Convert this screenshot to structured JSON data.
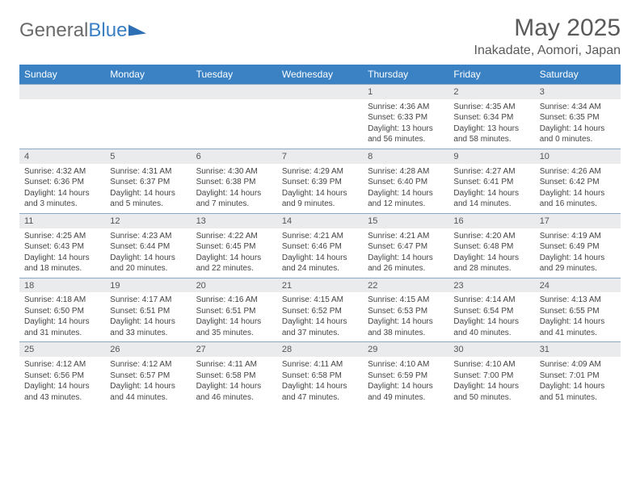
{
  "brand": {
    "part1": "General",
    "part2": "Blue"
  },
  "title": "May 2025",
  "location": "Inakadate, Aomori, Japan",
  "colors": {
    "header_bg": "#3b82c4",
    "header_text": "#ffffff",
    "daynum_bg": "#e9ebed",
    "row_border": "#8aa8c6",
    "body_text": "#444444",
    "title_text": "#5a5a5a"
  },
  "day_headers": [
    "Sunday",
    "Monday",
    "Tuesday",
    "Wednesday",
    "Thursday",
    "Friday",
    "Saturday"
  ],
  "weeks": [
    {
      "nums": [
        "",
        "",
        "",
        "",
        "1",
        "2",
        "3"
      ],
      "cells": [
        null,
        null,
        null,
        null,
        {
          "sr": "Sunrise: 4:36 AM",
          "ss": "Sunset: 6:33 PM",
          "d1": "Daylight: 13 hours",
          "d2": "and 56 minutes."
        },
        {
          "sr": "Sunrise: 4:35 AM",
          "ss": "Sunset: 6:34 PM",
          "d1": "Daylight: 13 hours",
          "d2": "and 58 minutes."
        },
        {
          "sr": "Sunrise: 4:34 AM",
          "ss": "Sunset: 6:35 PM",
          "d1": "Daylight: 14 hours",
          "d2": "and 0 minutes."
        }
      ]
    },
    {
      "nums": [
        "4",
        "5",
        "6",
        "7",
        "8",
        "9",
        "10"
      ],
      "cells": [
        {
          "sr": "Sunrise: 4:32 AM",
          "ss": "Sunset: 6:36 PM",
          "d1": "Daylight: 14 hours",
          "d2": "and 3 minutes."
        },
        {
          "sr": "Sunrise: 4:31 AM",
          "ss": "Sunset: 6:37 PM",
          "d1": "Daylight: 14 hours",
          "d2": "and 5 minutes."
        },
        {
          "sr": "Sunrise: 4:30 AM",
          "ss": "Sunset: 6:38 PM",
          "d1": "Daylight: 14 hours",
          "d2": "and 7 minutes."
        },
        {
          "sr": "Sunrise: 4:29 AM",
          "ss": "Sunset: 6:39 PM",
          "d1": "Daylight: 14 hours",
          "d2": "and 9 minutes."
        },
        {
          "sr": "Sunrise: 4:28 AM",
          "ss": "Sunset: 6:40 PM",
          "d1": "Daylight: 14 hours",
          "d2": "and 12 minutes."
        },
        {
          "sr": "Sunrise: 4:27 AM",
          "ss": "Sunset: 6:41 PM",
          "d1": "Daylight: 14 hours",
          "d2": "and 14 minutes."
        },
        {
          "sr": "Sunrise: 4:26 AM",
          "ss": "Sunset: 6:42 PM",
          "d1": "Daylight: 14 hours",
          "d2": "and 16 minutes."
        }
      ]
    },
    {
      "nums": [
        "11",
        "12",
        "13",
        "14",
        "15",
        "16",
        "17"
      ],
      "cells": [
        {
          "sr": "Sunrise: 4:25 AM",
          "ss": "Sunset: 6:43 PM",
          "d1": "Daylight: 14 hours",
          "d2": "and 18 minutes."
        },
        {
          "sr": "Sunrise: 4:23 AM",
          "ss": "Sunset: 6:44 PM",
          "d1": "Daylight: 14 hours",
          "d2": "and 20 minutes."
        },
        {
          "sr": "Sunrise: 4:22 AM",
          "ss": "Sunset: 6:45 PM",
          "d1": "Daylight: 14 hours",
          "d2": "and 22 minutes."
        },
        {
          "sr": "Sunrise: 4:21 AM",
          "ss": "Sunset: 6:46 PM",
          "d1": "Daylight: 14 hours",
          "d2": "and 24 minutes."
        },
        {
          "sr": "Sunrise: 4:21 AM",
          "ss": "Sunset: 6:47 PM",
          "d1": "Daylight: 14 hours",
          "d2": "and 26 minutes."
        },
        {
          "sr": "Sunrise: 4:20 AM",
          "ss": "Sunset: 6:48 PM",
          "d1": "Daylight: 14 hours",
          "d2": "and 28 minutes."
        },
        {
          "sr": "Sunrise: 4:19 AM",
          "ss": "Sunset: 6:49 PM",
          "d1": "Daylight: 14 hours",
          "d2": "and 29 minutes."
        }
      ]
    },
    {
      "nums": [
        "18",
        "19",
        "20",
        "21",
        "22",
        "23",
        "24"
      ],
      "cells": [
        {
          "sr": "Sunrise: 4:18 AM",
          "ss": "Sunset: 6:50 PM",
          "d1": "Daylight: 14 hours",
          "d2": "and 31 minutes."
        },
        {
          "sr": "Sunrise: 4:17 AM",
          "ss": "Sunset: 6:51 PM",
          "d1": "Daylight: 14 hours",
          "d2": "and 33 minutes."
        },
        {
          "sr": "Sunrise: 4:16 AM",
          "ss": "Sunset: 6:51 PM",
          "d1": "Daylight: 14 hours",
          "d2": "and 35 minutes."
        },
        {
          "sr": "Sunrise: 4:15 AM",
          "ss": "Sunset: 6:52 PM",
          "d1": "Daylight: 14 hours",
          "d2": "and 37 minutes."
        },
        {
          "sr": "Sunrise: 4:15 AM",
          "ss": "Sunset: 6:53 PM",
          "d1": "Daylight: 14 hours",
          "d2": "and 38 minutes."
        },
        {
          "sr": "Sunrise: 4:14 AM",
          "ss": "Sunset: 6:54 PM",
          "d1": "Daylight: 14 hours",
          "d2": "and 40 minutes."
        },
        {
          "sr": "Sunrise: 4:13 AM",
          "ss": "Sunset: 6:55 PM",
          "d1": "Daylight: 14 hours",
          "d2": "and 41 minutes."
        }
      ]
    },
    {
      "nums": [
        "25",
        "26",
        "27",
        "28",
        "29",
        "30",
        "31"
      ],
      "cells": [
        {
          "sr": "Sunrise: 4:12 AM",
          "ss": "Sunset: 6:56 PM",
          "d1": "Daylight: 14 hours",
          "d2": "and 43 minutes."
        },
        {
          "sr": "Sunrise: 4:12 AM",
          "ss": "Sunset: 6:57 PM",
          "d1": "Daylight: 14 hours",
          "d2": "and 44 minutes."
        },
        {
          "sr": "Sunrise: 4:11 AM",
          "ss": "Sunset: 6:58 PM",
          "d1": "Daylight: 14 hours",
          "d2": "and 46 minutes."
        },
        {
          "sr": "Sunrise: 4:11 AM",
          "ss": "Sunset: 6:58 PM",
          "d1": "Daylight: 14 hours",
          "d2": "and 47 minutes."
        },
        {
          "sr": "Sunrise: 4:10 AM",
          "ss": "Sunset: 6:59 PM",
          "d1": "Daylight: 14 hours",
          "d2": "and 49 minutes."
        },
        {
          "sr": "Sunrise: 4:10 AM",
          "ss": "Sunset: 7:00 PM",
          "d1": "Daylight: 14 hours",
          "d2": "and 50 minutes."
        },
        {
          "sr": "Sunrise: 4:09 AM",
          "ss": "Sunset: 7:01 PM",
          "d1": "Daylight: 14 hours",
          "d2": "and 51 minutes."
        }
      ]
    }
  ]
}
